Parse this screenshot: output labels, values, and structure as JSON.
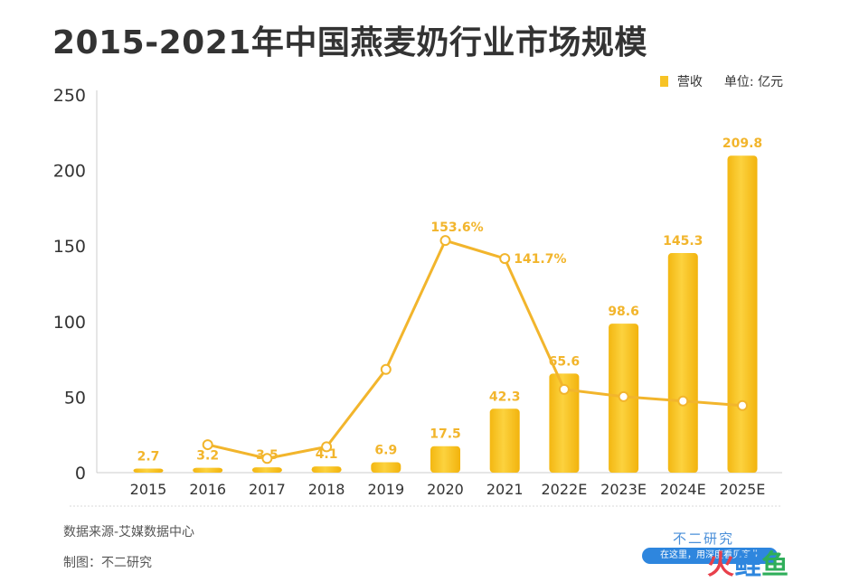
{
  "title": "2015-2021年中国燕麦奶行业市场规模",
  "legend": {
    "series_label": "营收",
    "unit_label": "单位: 亿元"
  },
  "footer": {
    "source": "数据来源-艾媒数据中心",
    "maker": "制图：不二研究"
  },
  "watermark": {
    "brand": "不二研究",
    "slogan": "在这里，用深度看见商业",
    "logo": [
      "火",
      "鲤",
      "鱼"
    ]
  },
  "colors": {
    "bar": "#f7c325",
    "line": "#f2b52c",
    "axis_text": "#333333",
    "data_label": "#f2b52c"
  },
  "chart_data": {
    "type": "bar",
    "categories": [
      "2015",
      "2016",
      "2017",
      "2018",
      "2019",
      "2020",
      "2021",
      "2022E",
      "2023E",
      "2024E",
      "2025E"
    ],
    "ylim": [
      0,
      250
    ],
    "yticks": [
      0,
      50,
      100,
      150,
      200,
      250
    ],
    "series": [
      {
        "name": "营收",
        "type": "bar",
        "values": [
          2.7,
          3.2,
          3.5,
          4.1,
          6.9,
          17.5,
          42.3,
          65.6,
          98.6,
          145.3,
          209.8
        ],
        "labels": [
          "2.7",
          "3.2",
          "3.5",
          "4.1",
          "6.9",
          "17.5",
          "42.3",
          "65.6",
          "98.6",
          "145.3",
          "209.8"
        ]
      },
      {
        "type": "line",
        "values": [
          null,
          18.5,
          9.4,
          17.1,
          68.3,
          153.6,
          141.7,
          55.1,
          50.3,
          47.4,
          44.4
        ],
        "labels": [
          null,
          null,
          null,
          null,
          null,
          "153.6%",
          "141.7%",
          null,
          null,
          null,
          null
        ]
      }
    ],
    "xlabel": "",
    "ylabel": "",
    "grid": false,
    "legend_position": "top-right"
  }
}
